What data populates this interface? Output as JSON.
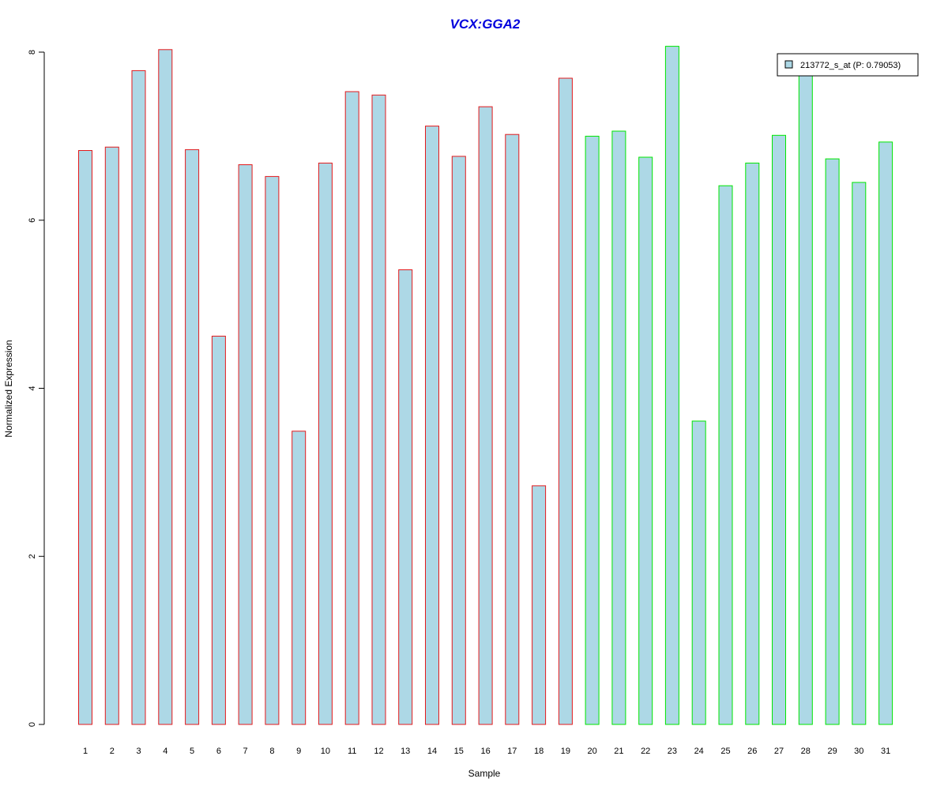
{
  "chart_data": {
    "type": "bar",
    "title": "VCX:GGA2",
    "xlabel": "Sample",
    "ylabel": "Normalized Expression",
    "ylim": [
      0,
      8
    ],
    "yticks": [
      0,
      2,
      4,
      6,
      8
    ],
    "categories": [
      "1",
      "2",
      "3",
      "4",
      "5",
      "6",
      "7",
      "8",
      "9",
      "10",
      "11",
      "12",
      "13",
      "14",
      "15",
      "16",
      "17",
      "18",
      "19",
      "20",
      "21",
      "22",
      "23",
      "24",
      "25",
      "26",
      "27",
      "28",
      "29",
      "30",
      "31"
    ],
    "series": [
      {
        "name": "213772_s_at (P: 0.79053)",
        "values": [
          6.83,
          6.87,
          7.78,
          8.03,
          6.84,
          4.62,
          6.66,
          6.52,
          3.49,
          6.68,
          7.53,
          7.49,
          5.41,
          7.12,
          6.76,
          7.35,
          7.02,
          2.84,
          7.69,
          7.0,
          7.06,
          6.75,
          8.07,
          3.61,
          6.41,
          6.68,
          7.01,
          7.78,
          6.73,
          6.45,
          6.93
        ]
      }
    ],
    "groups": [
      "red",
      "red",
      "red",
      "red",
      "red",
      "red",
      "red",
      "red",
      "red",
      "red",
      "red",
      "red",
      "red",
      "red",
      "red",
      "red",
      "red",
      "red",
      "red",
      "green",
      "green",
      "green",
      "green",
      "green",
      "green",
      "green",
      "green",
      "green",
      "green",
      "green",
      "green"
    ],
    "legend_position": "top-right",
    "grid": false
  },
  "colors": {
    "title": "#0000dd",
    "bar_fill": "#add8e6",
    "red": "#e31a1c",
    "green": "#00e600",
    "axis": "#000000"
  }
}
